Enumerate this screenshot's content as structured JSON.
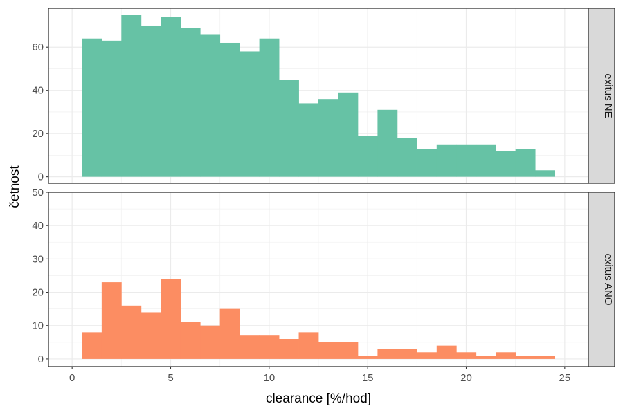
{
  "chart_data": {
    "type": "bar",
    "subtype": "faceted-histogram",
    "xlabel": "clearance [%/hod]",
    "ylabel": "četnost",
    "x_ticks": [
      0,
      5,
      10,
      15,
      20,
      25
    ],
    "xlim": [
      -1.2,
      26.2
    ],
    "bin_width": 1,
    "bin_starts": [
      0.5,
      1.5,
      2.5,
      3.5,
      4.5,
      5.5,
      6.5,
      7.5,
      8.5,
      9.5,
      10.5,
      11.5,
      12.5,
      13.5,
      14.5,
      15.5,
      16.5,
      17.5,
      18.5,
      19.5,
      20.5,
      21.5,
      22.5,
      23.5
    ],
    "grid": true,
    "legend": "none",
    "panels": [
      {
        "strip_label": "exitus NE",
        "color": "#66c2a5",
        "ylim": [
          -3,
          78
        ],
        "y_ticks": [
          0,
          20,
          40,
          60
        ],
        "values": [
          64,
          63,
          75,
          70,
          74,
          69,
          66,
          62,
          58,
          64,
          45,
          34,
          36,
          39,
          19,
          31,
          18,
          13,
          15,
          15,
          15,
          12,
          13,
          3
        ]
      },
      {
        "strip_label": "exitus ANO",
        "color": "#fc8d62",
        "ylim": [
          -2.3,
          50
        ],
        "y_ticks": [
          0,
          10,
          20,
          30,
          40,
          50
        ],
        "values": [
          8,
          23,
          16,
          14,
          24,
          11,
          10,
          15,
          7,
          7,
          6,
          8,
          5,
          5,
          1,
          3,
          3,
          2,
          4,
          2,
          1,
          2,
          1,
          1
        ]
      }
    ]
  }
}
